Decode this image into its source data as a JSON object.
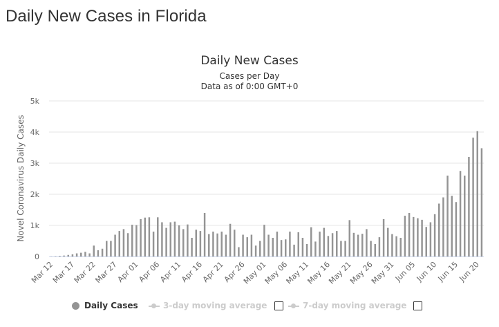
{
  "page": {
    "heading": "Daily New Cases in Florida"
  },
  "colors": {
    "bar": "#949494",
    "grid": "#e6e6e6",
    "axis": "#666666",
    "text": "#333333",
    "legend_inactive": "#cccccc"
  },
  "legend": {
    "daily_cases": "Daily Cases",
    "three_day": "3-day moving average",
    "seven_day": "7-day moving average"
  },
  "chart_data": {
    "type": "bar",
    "title": "Daily New Cases",
    "subtitle_line1": "Cases per Day",
    "subtitle_line2": "Data as of 0:00 GMT+0",
    "ylabel": "Novel Coronavirus Daily Cases",
    "xlabel": "",
    "ylim": [
      0,
      5000
    ],
    "y_ticks": [
      {
        "value": 0,
        "label": "0"
      },
      {
        "value": 1000,
        "label": "1k"
      },
      {
        "value": 2000,
        "label": "2k"
      },
      {
        "value": 3000,
        "label": "3k"
      },
      {
        "value": 4000,
        "label": "4k"
      },
      {
        "value": 5000,
        "label": "5k"
      }
    ],
    "x_ticks": [
      {
        "index": 0,
        "label": "Mar 12"
      },
      {
        "index": 5,
        "label": "Mar 17"
      },
      {
        "index": 10,
        "label": "Mar 22"
      },
      {
        "index": 15,
        "label": "Mar 27"
      },
      {
        "index": 20,
        "label": "Apr 01"
      },
      {
        "index": 25,
        "label": "Apr 06"
      },
      {
        "index": 30,
        "label": "Apr 11"
      },
      {
        "index": 35,
        "label": "Apr 16"
      },
      {
        "index": 40,
        "label": "Apr 21"
      },
      {
        "index": 45,
        "label": "Apr 26"
      },
      {
        "index": 50,
        "label": "May 01"
      },
      {
        "index": 55,
        "label": "May 06"
      },
      {
        "index": 60,
        "label": "May 11"
      },
      {
        "index": 65,
        "label": "May 16"
      },
      {
        "index": 70,
        "label": "May 21"
      },
      {
        "index": 75,
        "label": "May 26"
      },
      {
        "index": 80,
        "label": "May 31"
      },
      {
        "index": 85,
        "label": "Jun 05"
      },
      {
        "index": 90,
        "label": "Jun 10"
      },
      {
        "index": 95,
        "label": "Jun 15"
      },
      {
        "index": 100,
        "label": "Jun 20"
      }
    ],
    "start_date": "Mar 12",
    "series": [
      {
        "name": "Daily Cases",
        "values": [
          5,
          10,
          20,
          30,
          50,
          70,
          100,
          120,
          150,
          100,
          350,
          200,
          250,
          500,
          500,
          700,
          820,
          880,
          750,
          1020,
          1010,
          1200,
          1250,
          1260,
          800,
          1260,
          1100,
          920,
          1100,
          1120,
          1000,
          880,
          1030,
          600,
          860,
          820,
          1400,
          720,
          800,
          740,
          800,
          700,
          1050,
          860,
          300,
          700,
          620,
          700,
          350,
          500,
          1020,
          700,
          600,
          800,
          530,
          550,
          800,
          380,
          780,
          600,
          400,
          940,
          480,
          800,
          920,
          660,
          750,
          820,
          500,
          500,
          1170,
          760,
          700,
          730,
          880,
          500,
          400,
          620,
          1200,
          920,
          720,
          650,
          600,
          1310,
          1400,
          1270,
          1230,
          1180,
          950,
          1100,
          1360,
          1700,
          1900,
          2600,
          1950,
          1750,
          2750,
          2600,
          3200,
          3820,
          4030,
          3480
        ]
      }
    ]
  }
}
